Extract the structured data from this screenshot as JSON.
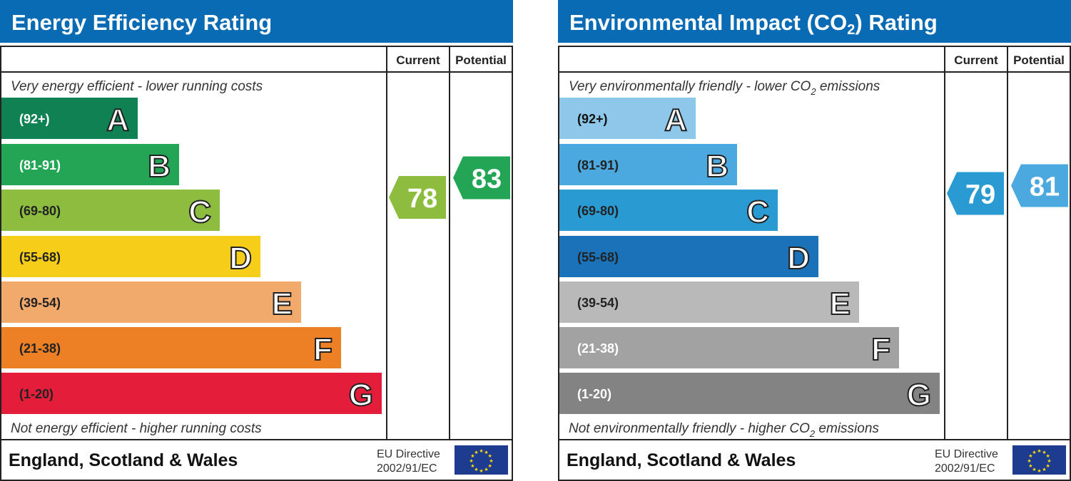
{
  "chart_data": [
    {
      "type": "bar",
      "title": "Energy Efficiency Rating",
      "title_sub": "",
      "columns": [
        "Current",
        "Potential"
      ],
      "top_note": "Very energy efficient - lower running costs",
      "bottom_note": "Not energy efficient - higher running costs",
      "bands": [
        {
          "letter": "A",
          "range": "(92+)",
          "color": "#0f8153",
          "text": "#ffffff"
        },
        {
          "letter": "B",
          "range": "(81-91)",
          "color": "#22a656",
          "text": "#ffffff"
        },
        {
          "letter": "C",
          "range": "(69-80)",
          "color": "#8dbd3f",
          "text": "#222222"
        },
        {
          "letter": "D",
          "range": "(55-68)",
          "color": "#f6cd18",
          "text": "#222222"
        },
        {
          "letter": "E",
          "range": "(39-54)",
          "color": "#f2a96c",
          "text": "#222222"
        },
        {
          "letter": "F",
          "range": "(21-38)",
          "color": "#ed7f25",
          "text": "#222222"
        },
        {
          "letter": "G",
          "range": "(1-20)",
          "color": "#e31d3a",
          "text": "#222222"
        }
      ],
      "current": {
        "value": 78,
        "color": "#8dbd3f"
      },
      "potential": {
        "value": 83,
        "color": "#22a656"
      },
      "footer": "England, Scotland & Wales",
      "directive": [
        "EU Directive",
        "2002/91/EC"
      ]
    },
    {
      "type": "bar",
      "title": "Environmental Impact (CO",
      "title_sub": "2",
      "title_end": ") Rating",
      "columns": [
        "Current",
        "Potential"
      ],
      "top_note": "Very environmentally friendly - lower CO",
      "top_note_end": " emissions",
      "bottom_note": "Not environmentally friendly - higher CO",
      "bottom_note_end": " emissions",
      "bands": [
        {
          "letter": "A",
          "range": "(92+)",
          "color": "#8dc8ea",
          "text": "#111111"
        },
        {
          "letter": "B",
          "range": "(81-91)",
          "color": "#4ba9df",
          "text": "#222222"
        },
        {
          "letter": "C",
          "range": "(69-80)",
          "color": "#2a9ad3",
          "text": "#222222"
        },
        {
          "letter": "D",
          "range": "(55-68)",
          "color": "#1a73b9",
          "text": "#222222"
        },
        {
          "letter": "E",
          "range": "(39-54)",
          "color": "#b9b9b9",
          "text": "#222222"
        },
        {
          "letter": "F",
          "range": "(21-38)",
          "color": "#a2a2a2",
          "text": "#ffffff"
        },
        {
          "letter": "G",
          "range": "(1-20)",
          "color": "#838383",
          "text": "#ffffff"
        }
      ],
      "current": {
        "value": 79,
        "color": "#2a9ad3"
      },
      "potential": {
        "value": 81,
        "color": "#4ba9df"
      },
      "footer": "England, Scotland & Wales",
      "directive": [
        "EU Directive",
        "2002/91/EC"
      ]
    }
  ],
  "colors": {
    "title_bar": "#0a6bb5",
    "eu_flag": "#1d3b8f",
    "eu_star": "#ffdd00"
  }
}
